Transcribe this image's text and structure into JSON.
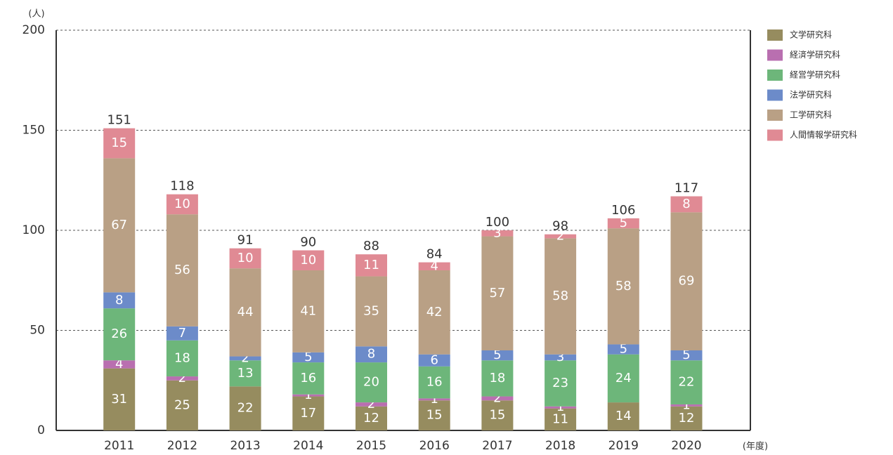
{
  "chart_data": {
    "type": "stacked_bar",
    "y_label": "(人)",
    "x_label": "(年度)",
    "categories": [
      "2011",
      "2012",
      "2013",
      "2014",
      "2015",
      "2016",
      "2017",
      "2018",
      "2019",
      "2020"
    ],
    "series": [
      {
        "name": "文学研究科",
        "color": "#968c5f",
        "values": [
          31,
          25,
          22,
          17,
          12,
          15,
          15,
          11,
          14,
          12
        ]
      },
      {
        "name": "経済学研究科",
        "color": "#b96fb0",
        "values": [
          4,
          2,
          null,
          1,
          2,
          1,
          2,
          1,
          null,
          1
        ]
      },
      {
        "name": "経営学研究科",
        "color": "#6db67a",
        "values": [
          26,
          18,
          13,
          16,
          20,
          16,
          18,
          23,
          24,
          22
        ]
      },
      {
        "name": "法学研究科",
        "color": "#6c8bc9",
        "values": [
          8,
          7,
          2,
          5,
          8,
          6,
          5,
          3,
          5,
          5
        ]
      },
      {
        "name": "工学研究科",
        "color": "#b9a085",
        "values": [
          67,
          56,
          44,
          41,
          35,
          42,
          57,
          58,
          58,
          69
        ]
      },
      {
        "name": "人間情報学研究科",
        "color": "#e08a94",
        "values": [
          15,
          10,
          10,
          10,
          11,
          4,
          3,
          2,
          5,
          8
        ]
      }
    ],
    "totals": [
      151,
      118,
      91,
      90,
      88,
      84,
      100,
      98,
      106,
      117
    ],
    "ylim": [
      0,
      200
    ],
    "yticks": [
      0,
      50,
      100,
      150,
      200
    ],
    "grid": true
  }
}
